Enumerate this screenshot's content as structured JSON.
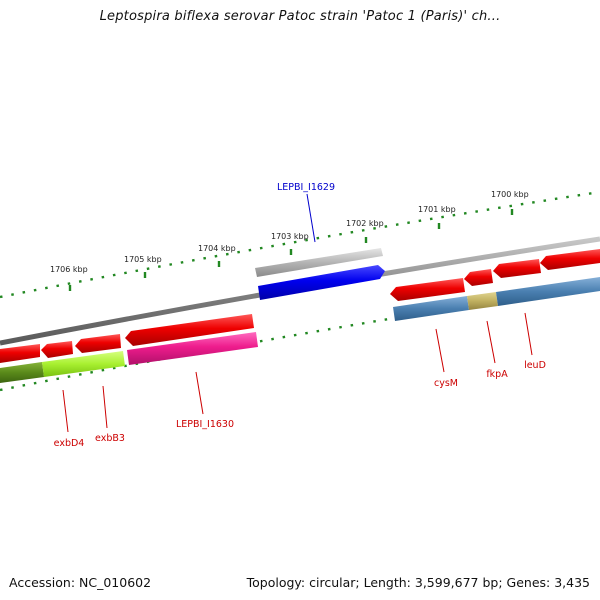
{
  "title": "Leptospira biflexa serovar Patoc strain 'Patoc 1 (Paris)' ch...",
  "footer": {
    "accession": "Accession: NC_010602",
    "summary": "Topology: circular; Length: 3,599,677 bp; Genes: 3,435"
  },
  "scale_labels": [
    "1706 kbp",
    "1705 kbp",
    "1704 kbp",
    "1703 kbp",
    "1702 kbp",
    "1701 kbp",
    "1700 kbp"
  ],
  "genes": [
    {
      "label": "LEPBI_I1629",
      "color": "#0000cc"
    },
    {
      "label": "exbD4",
      "color": "#cc0000"
    },
    {
      "label": "exbB3",
      "color": "#cc0000"
    },
    {
      "label": "LEPBI_I1630",
      "color": "#cc0000"
    },
    {
      "label": "cysM",
      "color": "#cc0000"
    },
    {
      "label": "fkpA",
      "color": "#cc0000"
    },
    {
      "label": "leuD",
      "color": "#cc0000"
    }
  ],
  "colors": {
    "backbone": "#7a7a7a",
    "cds_red": "#ee0000",
    "blue": "#0000ee",
    "gray_feature": "#b0b0b0",
    "magenta": "#ee1c8c",
    "olive": "#5a8a1a",
    "lime": "#a8f030",
    "steel_blue": "#4a7fb0",
    "khaki": "#c0b060",
    "tick_green": "#228822"
  }
}
